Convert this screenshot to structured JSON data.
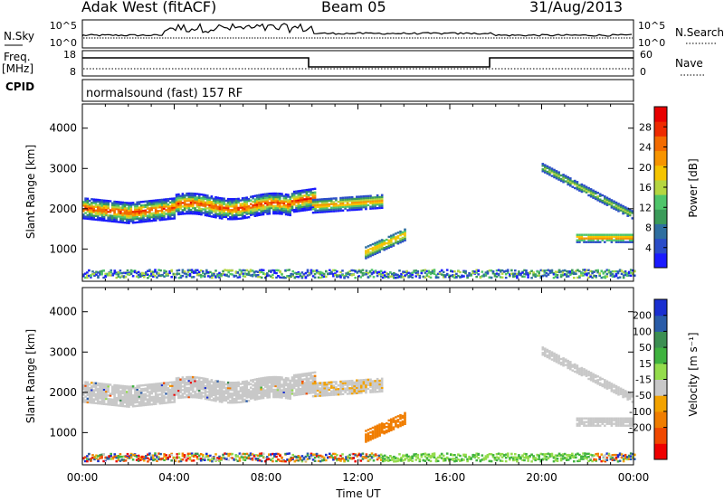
{
  "header": {
    "radar": "Adak West (fitACF)",
    "beam": "Beam 05",
    "date": "31/Aug/2013"
  },
  "panels": {
    "noise": {
      "left_label": "N.Sky",
      "left_ticks": [
        "10^5",
        "10^0"
      ],
      "right_label": "N.Search",
      "right_ticks": [
        "10^5",
        "10^0"
      ]
    },
    "freq": {
      "left_label_lines": [
        "Freq.",
        "[MHz]"
      ],
      "left_ticks": [
        "18",
        "8"
      ],
      "right_label": "Nave",
      "right_ticks": [
        "60",
        "0"
      ]
    },
    "cpid": {
      "label": "CPID",
      "text": "normalsound (fast) 157 RF"
    }
  },
  "colors": {
    "power": [
      "#1a1aff",
      "#2a4cc8",
      "#2f6fa0",
      "#3b9b5a",
      "#4fc56a",
      "#b5d640",
      "#f5c400",
      "#f79400",
      "#f36b00",
      "#ee2a00",
      "#e80000"
    ],
    "velocity": [
      "#ee0000",
      "#f04800",
      "#f07d00",
      "#f2a200",
      "#c8c8c8",
      "#94dc4c",
      "#3fb23f",
      "#3c8f52",
      "#2a5ca8",
      "#1a2fd0"
    ]
  },
  "chart_data": [
    {
      "type": "heatmap",
      "ylabel": "Slant Range [km]",
      "ylim": [
        200,
        4600
      ],
      "yticks": [
        "1000",
        "2000",
        "3000",
        "4000"
      ],
      "xlim": [
        0,
        24
      ],
      "colorbar": {
        "label": "Power [dB]",
        "range": [
          0,
          32
        ],
        "ticks": [
          "4",
          "8",
          "12",
          "16",
          "20",
          "24",
          "28"
        ]
      },
      "echo_bands": [
        {
          "t": [
            0,
            10
          ],
          "center_km": 2000,
          "peak_db": 28
        },
        {
          "t": [
            10,
            13
          ],
          "center_km": 2050,
          "peak_db": 16
        },
        {
          "t": [
            13,
            14
          ],
          "center_km": 1200,
          "peak_db": 14
        },
        {
          "t": [
            20,
            24
          ],
          "center_km": 1900,
          "peak_db": 12
        },
        {
          "t": [
            21,
            24
          ],
          "center_km": 1250,
          "peak_db": 16
        }
      ]
    },
    {
      "type": "heatmap",
      "ylabel": "Slant Range [km]",
      "xlabel": "Time UT",
      "ylim": [
        200,
        4600
      ],
      "yticks": [
        "1000",
        "2000",
        "3000",
        "4000"
      ],
      "xticks": [
        "00:00",
        "04:00",
        "08:00",
        "12:00",
        "16:00",
        "20:00",
        "00:00"
      ],
      "colorbar": {
        "label": "Velocity [m s⁻¹]",
        "ticks": [
          "200",
          "100",
          "50",
          "15",
          "-15",
          "-50",
          "-100",
          "-200"
        ]
      },
      "echo_bands": [
        {
          "t": [
            0,
            10
          ],
          "center_km": 2000,
          "velocity": 0
        },
        {
          "t": [
            12,
            14
          ],
          "center_km": 1200,
          "velocity": -70
        },
        {
          "t": [
            13,
            22
          ],
          "center_km": 300,
          "velocity": 40
        },
        {
          "t": [
            21,
            24
          ],
          "center_km": 1900,
          "velocity": 0
        }
      ]
    }
  ]
}
